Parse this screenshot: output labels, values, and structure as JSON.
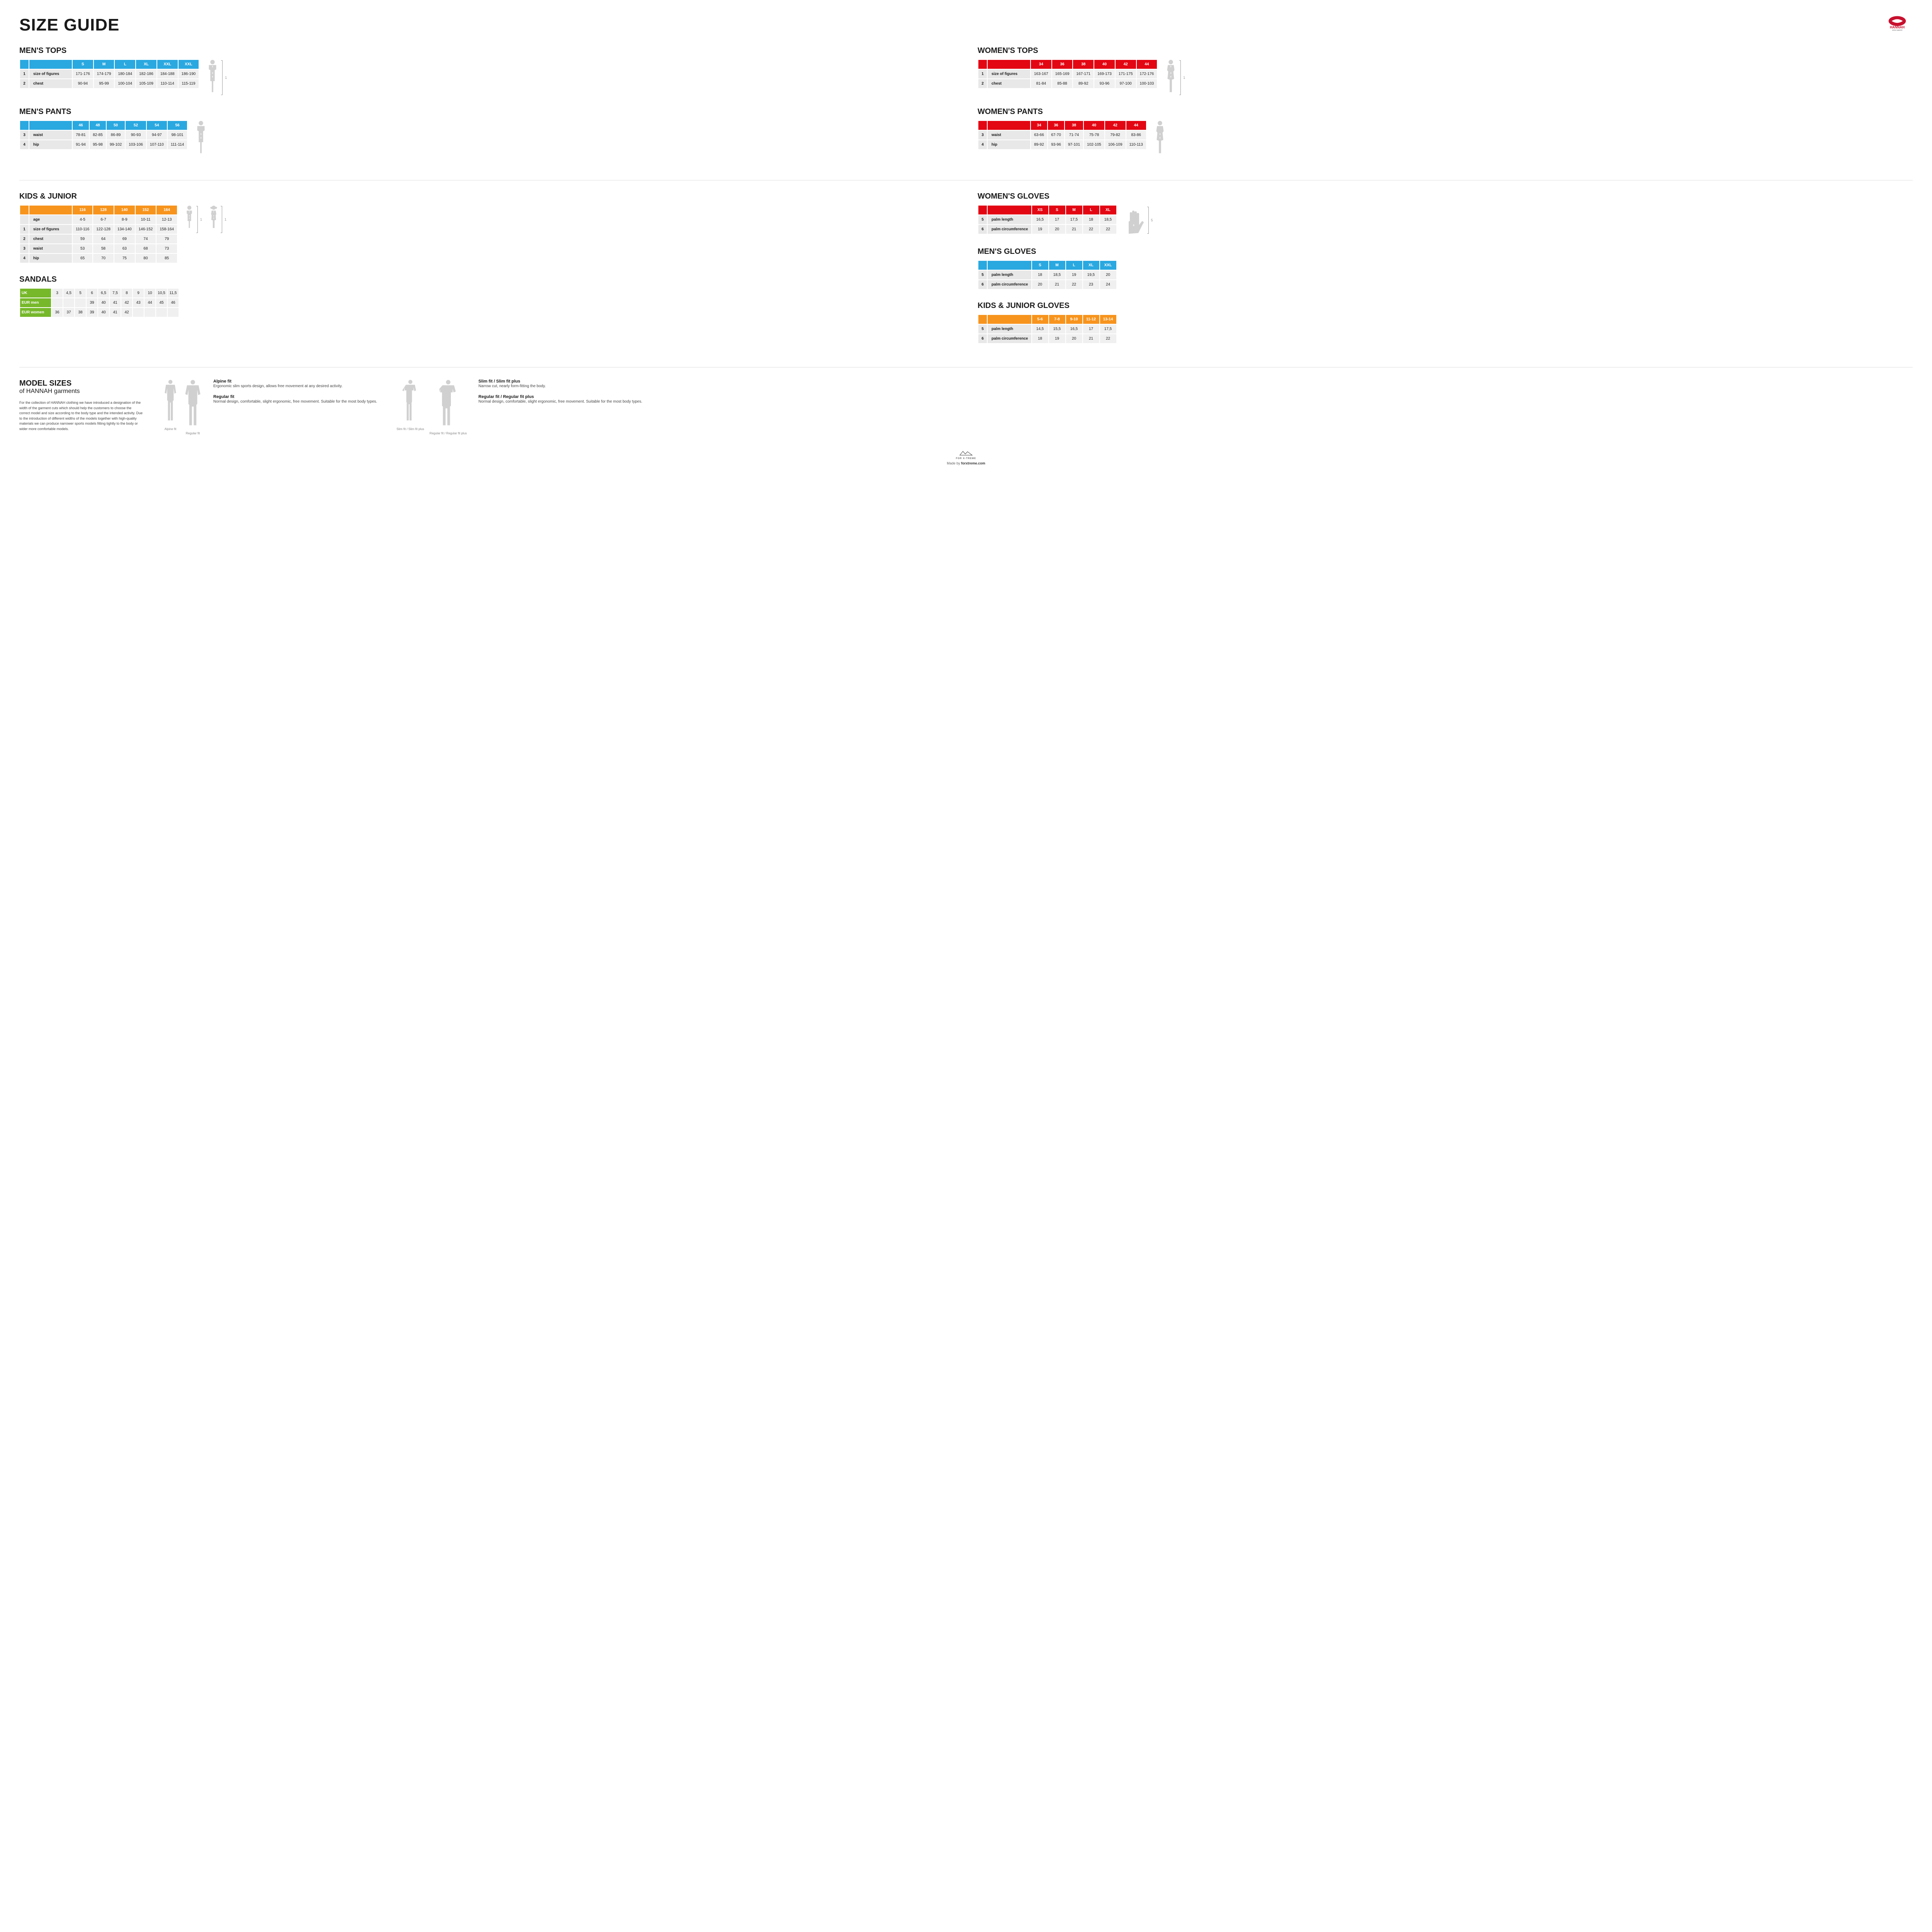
{
  "title": "SIZE GUIDE",
  "brand": "HANNAH",
  "brand_sub": "outdoor equipment",
  "colors": {
    "blue": "#2aa8e0",
    "red": "#e30613",
    "orange": "#f7941d",
    "green": "#76b82a",
    "grey_light": "#f0f0f0",
    "grey_mid": "#e8e8e8",
    "silhouette": "#d0d0d0"
  },
  "mens_tops": {
    "title": "MEN'S TOPS",
    "sizes": [
      "S",
      "M",
      "L",
      "XL",
      "XXL",
      "XXL"
    ],
    "rows": [
      {
        "idx": "1",
        "label": "size of figures",
        "vals": [
          "171-176",
          "174-179",
          "180-184",
          "182-186",
          "184-188",
          "186-190"
        ]
      },
      {
        "idx": "2",
        "label": "chest",
        "vals": [
          "90-94",
          "95-99",
          "100-104",
          "105-109",
          "110-114",
          "115-119"
        ]
      }
    ],
    "bracket": "1"
  },
  "mens_pants": {
    "title": "MEN'S PANTS",
    "sizes": [
      "46",
      "48",
      "50",
      "52",
      "54",
      "56"
    ],
    "rows": [
      {
        "idx": "3",
        "label": "waist",
        "vals": [
          "78-81",
          "82-85",
          "86-89",
          "90-93",
          "94-97",
          "98-101"
        ]
      },
      {
        "idx": "4",
        "label": "hip",
        "vals": [
          "91-94",
          "95-98",
          "99-102",
          "103-106",
          "107-110",
          "111-114"
        ]
      }
    ]
  },
  "womens_tops": {
    "title": "WOMEN'S TOPS",
    "sizes": [
      "34",
      "36",
      "38",
      "40",
      "42",
      "44"
    ],
    "rows": [
      {
        "idx": "1",
        "label": "size of figures",
        "vals": [
          "163-167",
          "165-169",
          "167-171",
          "169-173",
          "171-175",
          "172-176"
        ]
      },
      {
        "idx": "2",
        "label": "chest",
        "vals": [
          "81-84",
          "85-88",
          "89-92",
          "93-96",
          "97-100",
          "100-103"
        ]
      }
    ],
    "bracket": "1"
  },
  "womens_pants": {
    "title": "WOMEN'S PANTS",
    "sizes": [
      "34",
      "36",
      "38",
      "40",
      "42",
      "44"
    ],
    "rows": [
      {
        "idx": "3",
        "label": "waist",
        "vals": [
          "63-66",
          "67-70",
          "71-74",
          "75-78",
          "79-82",
          "83-86"
        ]
      },
      {
        "idx": "4",
        "label": "hip",
        "vals": [
          "89-92",
          "93-96",
          "97-101",
          "102-105",
          "106-109",
          "110-113"
        ]
      }
    ]
  },
  "kids": {
    "title": "KIDS & JUNIOR",
    "sizes": [
      "116",
      "128",
      "140",
      "152",
      "164"
    ],
    "rows": [
      {
        "idx": "",
        "label": "age",
        "vals": [
          "4-5",
          "6-7",
          "8-9",
          "10-11",
          "12-13"
        ]
      },
      {
        "idx": "1",
        "label": "size of figures",
        "vals": [
          "110-116",
          "122-128",
          "134-140",
          "146-152",
          "158-164"
        ]
      },
      {
        "idx": "2",
        "label": "chest",
        "vals": [
          "59",
          "64",
          "69",
          "74",
          "79"
        ]
      },
      {
        "idx": "3",
        "label": "waist",
        "vals": [
          "53",
          "58",
          "63",
          "68",
          "73"
        ]
      },
      {
        "idx": "4",
        "label": "hip",
        "vals": [
          "65",
          "70",
          "75",
          "80",
          "85"
        ]
      }
    ],
    "bracket": "1"
  },
  "sandals": {
    "title": "SANDALS",
    "rows": [
      {
        "label": "UK",
        "vals": [
          "3",
          "4,5",
          "5",
          "6",
          "6,5",
          "7,5",
          "8",
          "9",
          "10",
          "10,5",
          "11,5"
        ]
      },
      {
        "label": "EUR men",
        "vals": [
          "",
          "",
          "",
          "39",
          "40",
          "41",
          "42",
          "43",
          "44",
          "45",
          "46"
        ]
      },
      {
        "label": "EUR women",
        "vals": [
          "36",
          "37",
          "38",
          "39",
          "40",
          "41",
          "42",
          "",
          "",
          "",
          ""
        ]
      }
    ]
  },
  "womens_gloves": {
    "title": "WOMEN'S GLOVES",
    "sizes": [
      "XS",
      "S",
      "M",
      "L",
      "XL"
    ],
    "rows": [
      {
        "idx": "5",
        "label": "palm length",
        "vals": [
          "16,5",
          "17",
          "17,5",
          "18",
          "18,5"
        ]
      },
      {
        "idx": "6",
        "label": "palm circumference",
        "vals": [
          "19",
          "20",
          "21",
          "22",
          "22"
        ]
      }
    ],
    "bracket": "5"
  },
  "mens_gloves": {
    "title": "MEN'S GLOVES",
    "sizes": [
      "S",
      "M",
      "L",
      "XL",
      "XXL"
    ],
    "rows": [
      {
        "idx": "5",
        "label": "palm length",
        "vals": [
          "18",
          "18,5",
          "19",
          "19,5",
          "20"
        ]
      },
      {
        "idx": "6",
        "label": "palm circumference",
        "vals": [
          "20",
          "21",
          "22",
          "23",
          "24"
        ]
      }
    ]
  },
  "kids_gloves": {
    "title": "KIDS & JUNIOR GLOVES",
    "sizes": [
      "5-6",
      "7-8",
      "9-10",
      "11-12",
      "13-14"
    ],
    "rows": [
      {
        "idx": "5",
        "label": "palm length",
        "vals": [
          "14,5",
          "15,5",
          "16,5",
          "17",
          "17,5"
        ]
      },
      {
        "idx": "6",
        "label": "palm circumference",
        "vals": [
          "18",
          "19",
          "20",
          "21",
          "22"
        ]
      }
    ]
  },
  "model_sizes": {
    "title": "MODEL SIZES",
    "sub": "of HANNAH garments",
    "desc": "For the collection of HANNAH clothing we have introduced a designation of the width of the garment cuts which should help the customers to choose the correct model and size according to the body type and the intended activity. Due to the introduction of different widths of the models together with high-quality materials we can produce narrower sports models fitting tightly to the body or wider more comfortable models.",
    "group1": {
      "figs": [
        "Alpine fit",
        "Regular fit"
      ],
      "items": [
        {
          "h": "Alpine fit",
          "p": "Ergonomic slim sports design, allows free movement at any desired activity."
        },
        {
          "h": "Regular fit",
          "p": "Normal design, comfortable, slight ergonomic, free movement. Suitable for the most body types."
        }
      ]
    },
    "group2": {
      "figs": [
        "Slim fit / Slim fit plus",
        "Regular fit / Regular fit plus"
      ],
      "items": [
        {
          "h": "Slim fit / Slim fit plus",
          "p": "Narrow cut, nearly form-fitting the body."
        },
        {
          "h": "Regular fit / Regular fit plus",
          "p": "Normal design, comfortable, slight ergonomic, free movement. Suitable for the most body types."
        }
      ]
    }
  },
  "footer": {
    "brand": "FOR X-TREME",
    "made": "Made by ",
    "link": "forxtreme.com"
  }
}
